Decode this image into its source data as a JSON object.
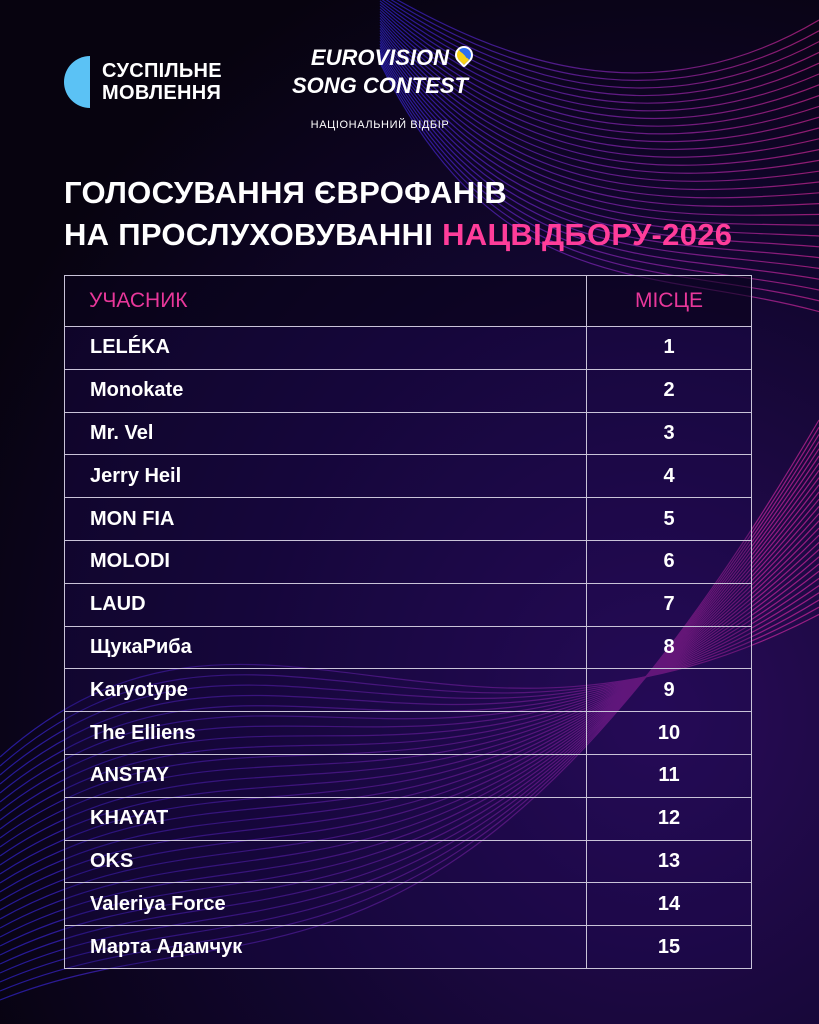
{
  "branding": {
    "broadcaster_line1": "СУСПІЛЬНЕ",
    "broadcaster_line2": "МОВЛЕННЯ",
    "esc_logo_text": "EUROVISION SONG CONTEST",
    "subtitle": "НАЦІОНАЛЬНИЙ ВІДБІР"
  },
  "title": {
    "line1": "ГОЛОСУВАННЯ ЄВРОФАНІВ",
    "line2_white": "НА ПРОСЛУХОВУВАННІ ",
    "line2_pink": "НАЦВІДБОРУ-2026"
  },
  "colors": {
    "accent": "#ff3d9a",
    "logo_blue": "#5bc2f5",
    "background": "#120630"
  },
  "table": {
    "headers": [
      "УЧАСНИК",
      "МІСЦЕ"
    ],
    "rows": [
      [
        "LELÉKA",
        "1"
      ],
      [
        "Monokate",
        "2"
      ],
      [
        "Mr. Vel",
        "3"
      ],
      [
        "Jerry Heil",
        "4"
      ],
      [
        "MON FIA",
        "5"
      ],
      [
        "MOLODI",
        "6"
      ],
      [
        "LAUD",
        "7"
      ],
      [
        "ЩукаРиба",
        "8"
      ],
      [
        "Karyotype",
        "9"
      ],
      [
        "The Elliens",
        "10"
      ],
      [
        "ANSTAY",
        "11"
      ],
      [
        "KHAYAT",
        "12"
      ],
      [
        "OKS",
        "13"
      ],
      [
        "Valeriya Force",
        "14"
      ],
      [
        "Марта Адамчук",
        "15"
      ]
    ]
  }
}
